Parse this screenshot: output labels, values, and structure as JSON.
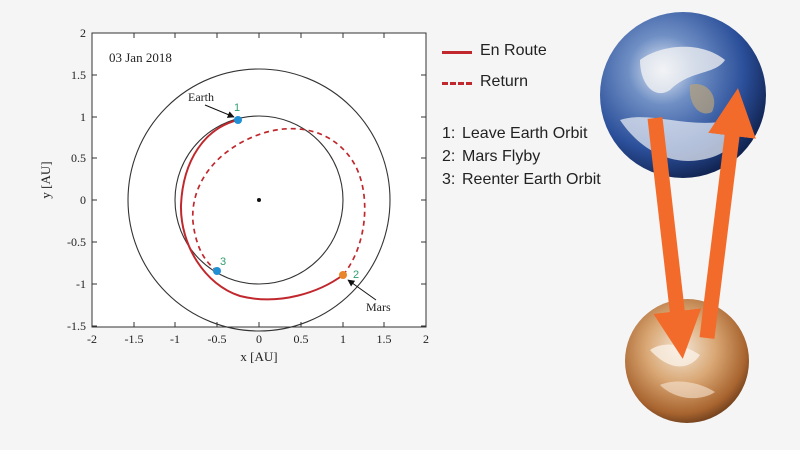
{
  "plot": {
    "date_label": "03 Jan 2018",
    "xlabel": "x [AU]",
    "ylabel": "y [AU]",
    "xticks": [
      "-2",
      "-1.5",
      "-1",
      "-0.5",
      "0",
      "0.5",
      "1",
      "1.5",
      "2"
    ],
    "yticks": [
      "2",
      "1.5",
      "1",
      "0.5",
      "0",
      "-0.5",
      "-1",
      "-1.5"
    ],
    "earth_label": "Earth",
    "mars_label": "Mars",
    "marker_labels": [
      "1",
      "2",
      "3"
    ]
  },
  "legend": {
    "en_route": "En Route",
    "return": "Return",
    "steps": [
      {
        "num": "1:",
        "text": "Leave Earth Orbit"
      },
      {
        "num": "2:",
        "text": "Mars Flyby"
      },
      {
        "num": "3:",
        "text": "Reenter Earth Orbit"
      }
    ]
  },
  "colors": {
    "route": "#c0282d",
    "arrow": "#f26b2a",
    "marker_earth": "#1f8fd6",
    "marker_mars": "#e9862c",
    "marker_text": "#2e9e6e"
  },
  "icons": [
    "earth-planet-icon",
    "mars-planet-icon"
  ]
}
